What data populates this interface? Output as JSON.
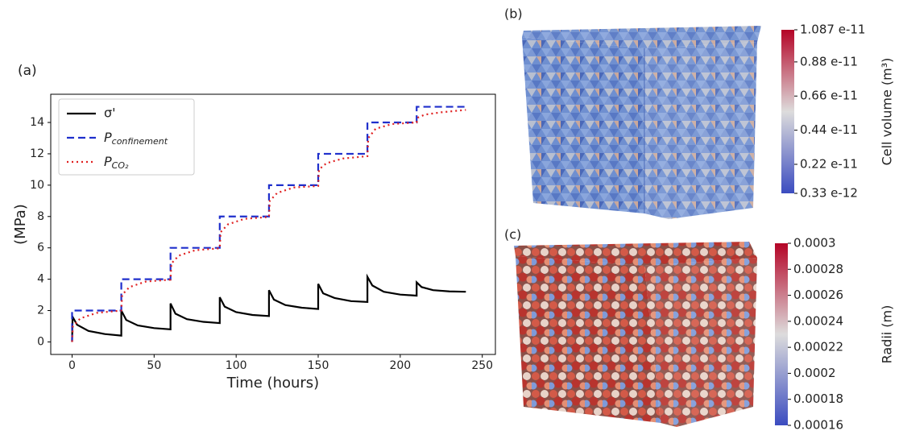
{
  "chart_data": [
    {
      "type": "line",
      "panel_label": "(a)",
      "xlabel": "Time (hours)",
      "ylabel": "(MPa)",
      "xlim": [
        -13,
        258
      ],
      "ylim": [
        -0.8,
        15.8
      ],
      "xticks": [
        0,
        50,
        100,
        150,
        200,
        250
      ],
      "yticks": [
        0,
        2,
        4,
        6,
        8,
        10,
        12,
        14
      ],
      "grid": false,
      "legend": "upper left",
      "series": [
        {
          "name": "σ'",
          "color": "#000000",
          "style": "solid",
          "x": [
            0,
            0.3,
            3,
            10,
            20,
            30,
            30,
            33,
            40,
            50,
            60,
            60,
            63,
            70,
            80,
            90,
            90,
            93,
            100,
            110,
            120,
            120,
            123,
            130,
            140,
            150,
            150,
            153,
            160,
            170,
            180,
            180,
            183,
            190,
            200,
            210,
            210,
            213,
            220,
            230,
            240
          ],
          "values": [
            0,
            1.6,
            1.1,
            0.7,
            0.5,
            0.4,
            2.0,
            1.4,
            1.05,
            0.88,
            0.8,
            2.45,
            1.8,
            1.45,
            1.28,
            1.2,
            2.85,
            2.25,
            1.9,
            1.72,
            1.65,
            3.3,
            2.7,
            2.35,
            2.18,
            2.1,
            3.7,
            3.1,
            2.8,
            2.6,
            2.55,
            4.15,
            3.6,
            3.2,
            3.02,
            2.95,
            3.8,
            3.5,
            3.3,
            3.22,
            3.2
          ]
        },
        {
          "name": "P_confinement",
          "color": "#1f2fcc",
          "style": "dashed",
          "x": [
            0,
            0,
            30,
            30,
            60,
            60,
            90,
            90,
            120,
            120,
            150,
            150,
            180,
            180,
            210,
            210,
            240
          ],
          "values": [
            0,
            2,
            2,
            4,
            4,
            6,
            6,
            8,
            8,
            10,
            10,
            12,
            12,
            14,
            14,
            15,
            15
          ]
        },
        {
          "name": "P_CO₂",
          "color": "#e02020",
          "style": "dotted",
          "x": [
            0,
            0.5,
            5,
            15,
            30,
            30.5,
            35,
            45,
            60,
            60.5,
            65,
            75,
            90,
            90.5,
            95,
            105,
            120,
            120.5,
            125,
            135,
            150,
            150.5,
            155,
            165,
            180,
            180.5,
            185,
            195,
            210,
            210.5,
            215,
            225,
            240
          ],
          "values": [
            0,
            1.0,
            1.5,
            1.85,
            2.0,
            3.0,
            3.5,
            3.85,
            3.97,
            5.0,
            5.5,
            5.85,
            5.97,
            7.0,
            7.5,
            7.85,
            7.97,
            9.0,
            9.5,
            9.85,
            9.95,
            11.0,
            11.4,
            11.7,
            11.85,
            13.0,
            13.6,
            13.9,
            14.0,
            14.3,
            14.5,
            14.65,
            14.8
          ]
        }
      ]
    },
    {
      "type": "colorbar",
      "panel_label": "(b)",
      "label": "Cell volume (m³)",
      "colors": [
        "#3b4cc0",
        "#dddcdc",
        "#b40426"
      ],
      "lim": [
        3.3e-13,
        1.087e-11
      ],
      "ticks": [
        {
          "value": 1.087e-11,
          "label": "1.087 e-11"
        },
        {
          "value": 8.8e-12,
          "label": "0.88 e-11"
        },
        {
          "value": 6.6e-12,
          "label": "0.66 e-11"
        },
        {
          "value": 4.4e-12,
          "label": "0.44 e-11"
        },
        {
          "value": 2.2e-12,
          "label": "0.22 e-11"
        },
        {
          "value": 3.3e-13,
          "label": "0.33 e-12"
        }
      ]
    },
    {
      "type": "colorbar",
      "panel_label": "(c)",
      "label": "Radii (m)",
      "colors": [
        "#3b4cc0",
        "#dddcdc",
        "#b40426"
      ],
      "lim": [
        0.00016,
        0.0003
      ],
      "ticks": [
        0.0003,
        0.00028,
        0.00026,
        0.00024,
        0.00022,
        0.0002,
        0.00018,
        0.00016
      ]
    }
  ]
}
